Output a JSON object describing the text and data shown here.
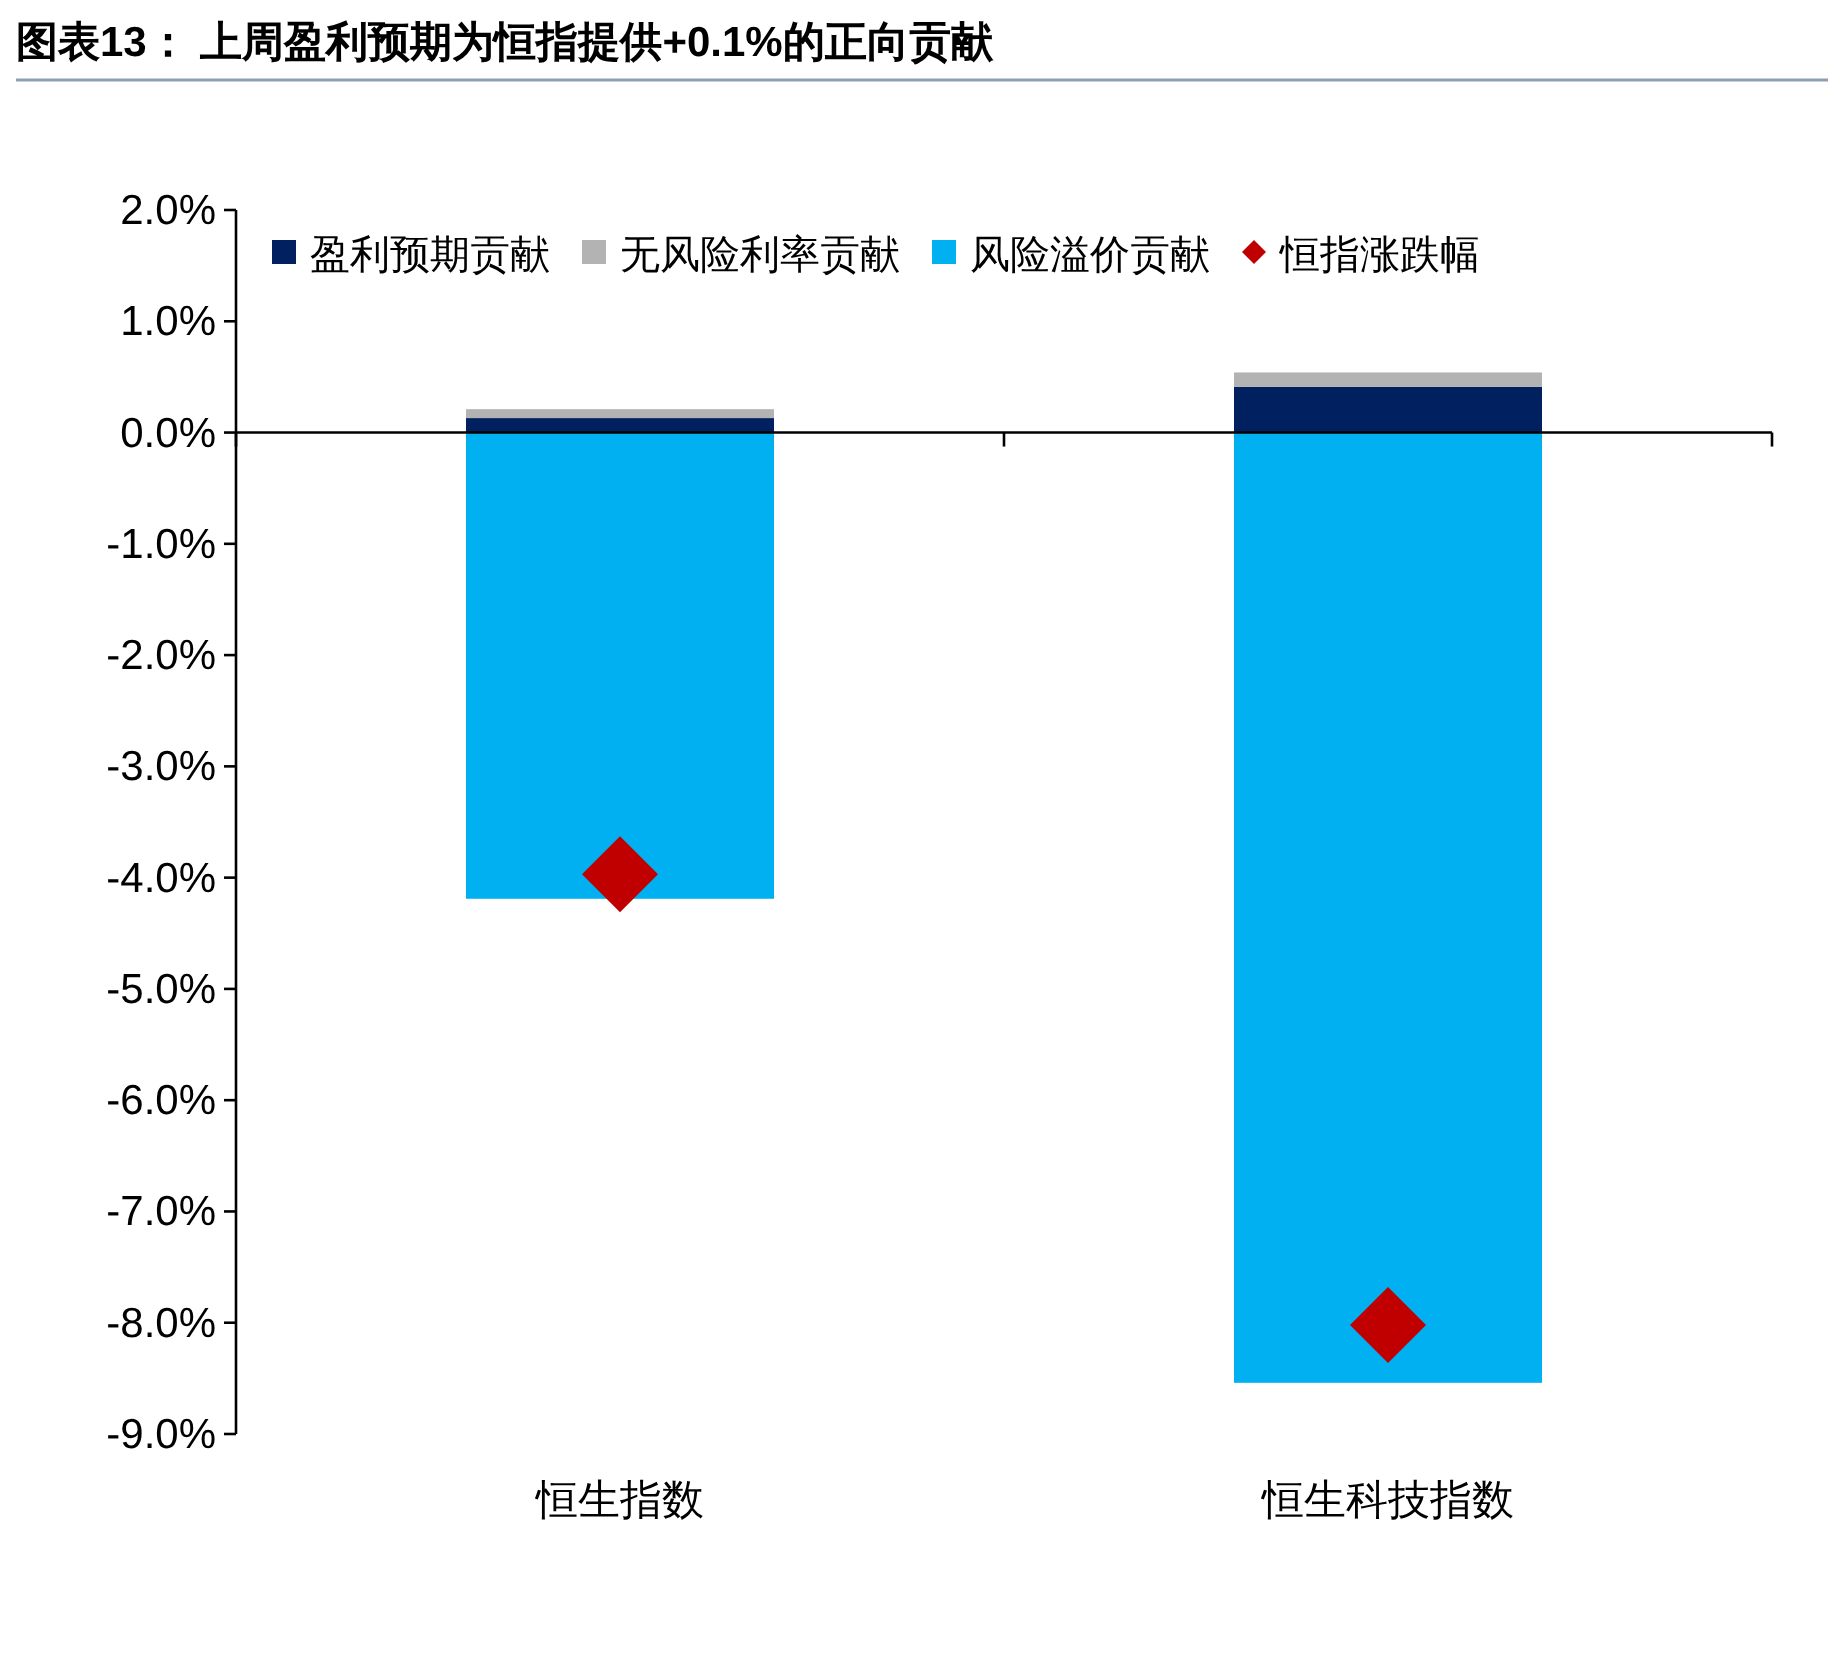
{
  "chart_data": {
    "type": "bar",
    "title": "图表13： 上周盈利预期为恒指提供+0.1%的正向贡献",
    "categories": [
      "恒生指数",
      "恒生科技指数"
    ],
    "stacked": true,
    "series": [
      {
        "name": "盈利预期贡献",
        "color": "#002060",
        "values": [
          0.13,
          0.41
        ]
      },
      {
        "name": "无风险利率贡献",
        "color": "#b3b3b3",
        "values": [
          0.08,
          0.13
        ]
      },
      {
        "name": "风险溢价贡献",
        "color": "#00b0f0",
        "values": [
          -4.19,
          -8.54
        ]
      },
      {
        "name": "恒指涨跌幅",
        "type": "scatter",
        "marker": "diamond",
        "color": "#c00000",
        "values": [
          -3.97,
          -8.02
        ]
      }
    ],
    "ylim": [
      -9,
      2
    ],
    "yticks": [
      {
        "value": 2,
        "label": "2.0%"
      },
      {
        "value": 1,
        "label": "1.0%"
      },
      {
        "value": 0,
        "label": "0.0%"
      },
      {
        "value": -1,
        "label": "-1.0%"
      },
      {
        "value": -2,
        "label": "-2.0%"
      },
      {
        "value": -3,
        "label": "-3.0%"
      },
      {
        "value": -4,
        "label": "-4.0%"
      },
      {
        "value": -5,
        "label": "-5.0%"
      },
      {
        "value": -6,
        "label": "-6.0%"
      },
      {
        "value": -7,
        "label": "-7.0%"
      },
      {
        "value": -8,
        "label": "-8.0%"
      },
      {
        "value": -9,
        "label": "-9.0%"
      }
    ],
    "legend": "top"
  }
}
